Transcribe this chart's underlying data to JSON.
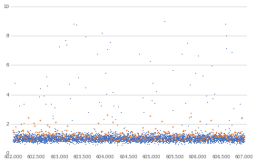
{
  "x_min": 602000,
  "x_max": 607000,
  "blue_color": "#4472C4",
  "orange_color": "#ED7D31",
  "bg_color": "#FFFFFF",
  "grid_color": "#D9D9D9",
  "n_blue_points": 5000,
  "n_orange_points": 300,
  "seed": 42,
  "y_ticks": [
    0,
    2,
    4,
    6,
    8,
    10
  ],
  "x_tick_step": 500
}
